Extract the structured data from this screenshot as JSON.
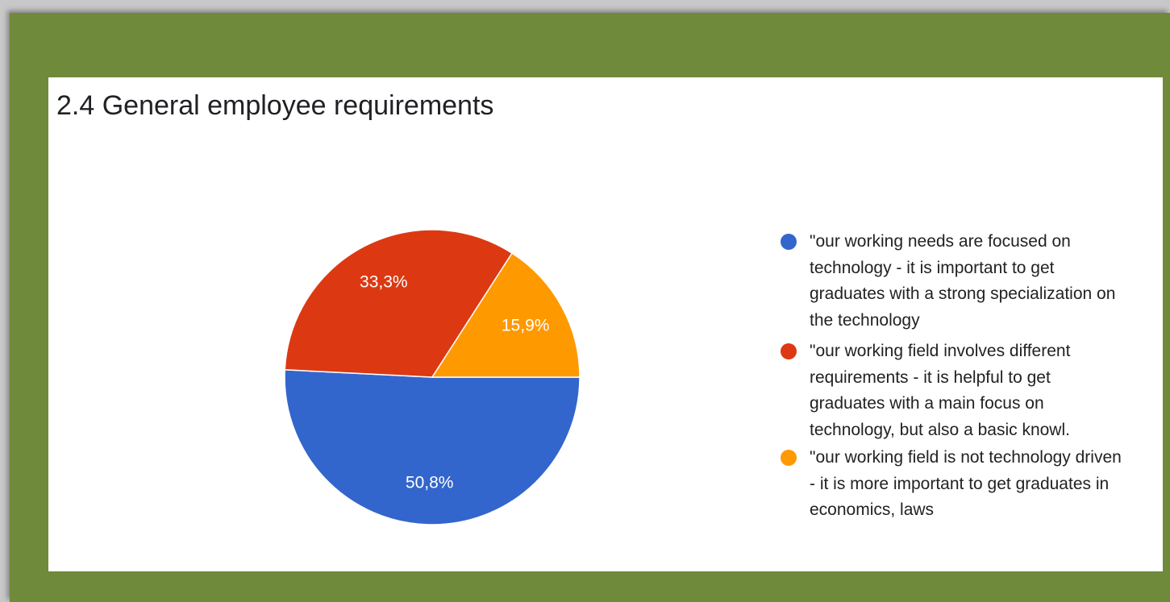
{
  "chart_data": {
    "type": "pie",
    "title": "2.4 General employee requirements",
    "series": [
      {
        "name": "\"our working needs are focused on technology - it is important to get graduates with a strong specialization on the technology",
        "color": "#3366cc",
        "values": [
          50.8
        ],
        "value_labels": [
          "50,8%"
        ]
      },
      {
        "name": "\"our working field involves different requirements - it is helpful to get graduates with a main focus on technology, but also a basic knowl.",
        "color": "#dc3912",
        "values": [
          33.3
        ],
        "value_labels": [
          "33,3%"
        ]
      },
      {
        "name": "\"our working field is not technology driven - it is more important to get graduates in economics, laws",
        "color": "#ff9900",
        "values": [
          15.9
        ],
        "value_labels": [
          "15,9%"
        ]
      }
    ],
    "legend": "right"
  }
}
